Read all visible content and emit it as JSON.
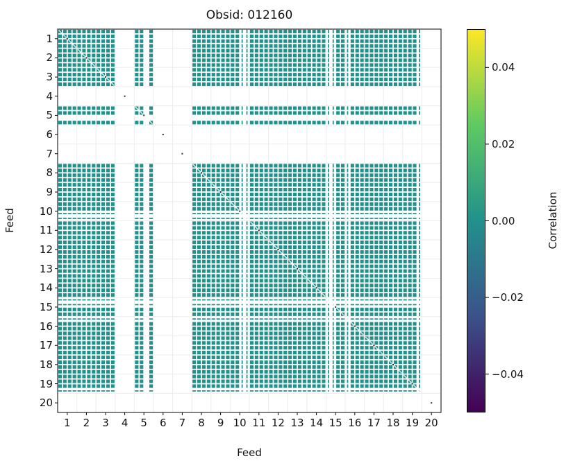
{
  "figure": {
    "title": "Obsid: 012160"
  },
  "axes": {
    "xlabel": "Feed",
    "ylabel": "Feed",
    "x_ticks": [
      "1",
      "2",
      "3",
      "4",
      "5",
      "6",
      "7",
      "8",
      "9",
      "10",
      "11",
      "12",
      "13",
      "14",
      "15",
      "16",
      "17",
      "18",
      "19",
      "20"
    ],
    "y_ticks": [
      "1",
      "2",
      "3",
      "4",
      "5",
      "6",
      "7",
      "8",
      "9",
      "10",
      "11",
      "12",
      "13",
      "14",
      "15",
      "16",
      "17",
      "18",
      "19",
      "20"
    ]
  },
  "colorbar": {
    "label": "Correlation",
    "tick_labels": [
      "0.04",
      "0.02",
      "0.00",
      "−0.02",
      "−0.04"
    ],
    "tick_values": [
      0.04,
      0.02,
      0.0,
      -0.02,
      -0.04
    ],
    "vmin": -0.05,
    "vmax": 0.05,
    "gradient": [
      "#fde725",
      "#5ec962",
      "#21918c",
      "#3b528b",
      "#440154"
    ]
  },
  "chart_data": {
    "type": "heatmap",
    "title": "Obsid: 012160",
    "xlabel": "Feed",
    "ylabel": "Feed",
    "feeds": [
      1,
      2,
      3,
      4,
      5,
      6,
      7,
      8,
      9,
      10,
      11,
      12,
      13,
      14,
      15,
      16,
      17,
      18,
      19,
      20
    ],
    "bands_per_feed": 4,
    "correlation_value_typical": 0.0,
    "cell_color_at_zero": "#21918c",
    "grid_color": "#ebebeb",
    "diag_marker_color": "#2b2b2b",
    "missing_feeds": [
      4,
      6,
      7,
      20
    ],
    "band_presence": {
      "1": [
        1,
        1,
        1,
        1
      ],
      "2": [
        1,
        1,
        1,
        1
      ],
      "3": [
        1,
        1,
        1,
        1
      ],
      "4": [
        0,
        0,
        0,
        0
      ],
      "5": [
        1,
        1,
        0,
        1
      ],
      "6": [
        0,
        0,
        0,
        0
      ],
      "7": [
        0,
        0,
        0,
        0
      ],
      "8": [
        1,
        1,
        1,
        1
      ],
      "9": [
        1,
        1,
        1,
        1
      ],
      "10": [
        1,
        1,
        0.3,
        0.3
      ],
      "11": [
        1,
        1,
        1,
        1
      ],
      "12": [
        1,
        1,
        1,
        1
      ],
      "13": [
        1,
        1,
        1,
        1
      ],
      "14": [
        1,
        1,
        1,
        1
      ],
      "15": [
        0.3,
        0.3,
        1,
        1
      ],
      "16": [
        0.3,
        1,
        1,
        1
      ],
      "17": [
        1,
        1,
        1,
        1
      ],
      "18": [
        1,
        1,
        1,
        1
      ],
      "19": [
        1,
        1,
        1,
        0.3
      ],
      "20": [
        0,
        0,
        0,
        0
      ]
    }
  }
}
